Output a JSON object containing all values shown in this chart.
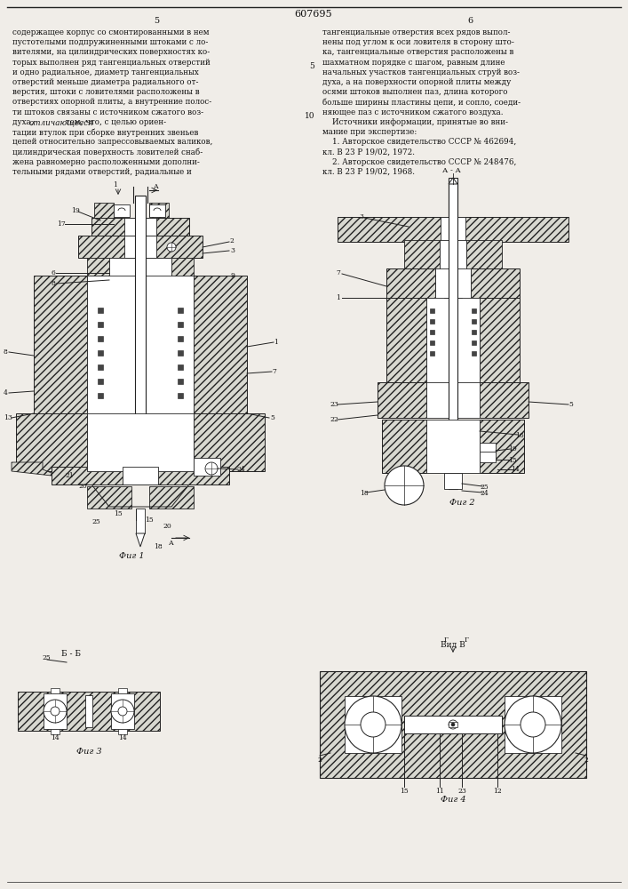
{
  "patent_number": "607695",
  "page_left": "5",
  "page_right": "6",
  "background_color": "#f0ede8",
  "text_color": "#1a1a1a",
  "text_left": "содержащее корпус со смонтированными в нем\nпустотелыми подпружиненными штоками с ло-\nвителями, на цилиндрических поверхностях ко-\nторых выполнен ряд тангенциальных отверстий\nи одно радиальное, диаметр тангенциальных\nотверстий меньше диаметра радиального от-\nверстия, штоки с ловителями расположены в\nотверстиях опорной плиты, а внутренние полос-\nти штоков связаны с источником сжатого воз-\nдуха, отличающееся тем, что, с целью ориен-\nтации втулок при сборке внутренних звеньев\nцепей относительно запрессовываемых валиков,\nцилиндрическая поверхность ловителей снаб-\nжена равномерно расположенными дополни-\nтельными рядами отверстий, радиальные и",
  "text_right": "тангенциальные отверстия всех рядов выпол-\nнены под углом к оси ловителя в сторону што-\nка, тангенциальные отверстия расположены в\nшахматном порядке с шагом, равным длине\nначальных участков тангенциальных струй воз-\nдуха, а на поверхности опорной плиты между\nосями штоков выполнен паз, длина которого\nбольше ширины пластины цепи, и сопло, соеди-\nняющее паз с источником сжатого воздуха.\n    Источники информации, принятые во вни-\nмание при экспертизе:\n    1. Авторское свидетельство СССР № 462694,\nкл. В 23 Р 19/02, 1972.\n    2. Авторское свидетельство СССР № 248476,\nкл. В 23 Р 19/02, 1968.",
  "hatch_color": "#aaaaaa",
  "hatch_face": "#d8d8d0",
  "line_color": "#222222",
  "fig1_label": "Фиг 1",
  "fig2_label": "Фиг 2",
  "fig3_label": "Фиг 3",
  "fig4_label": "Фиг 4",
  "vid_v_label": "Вид В",
  "section_aa": "А - А",
  "section_bb": "Б - Б"
}
